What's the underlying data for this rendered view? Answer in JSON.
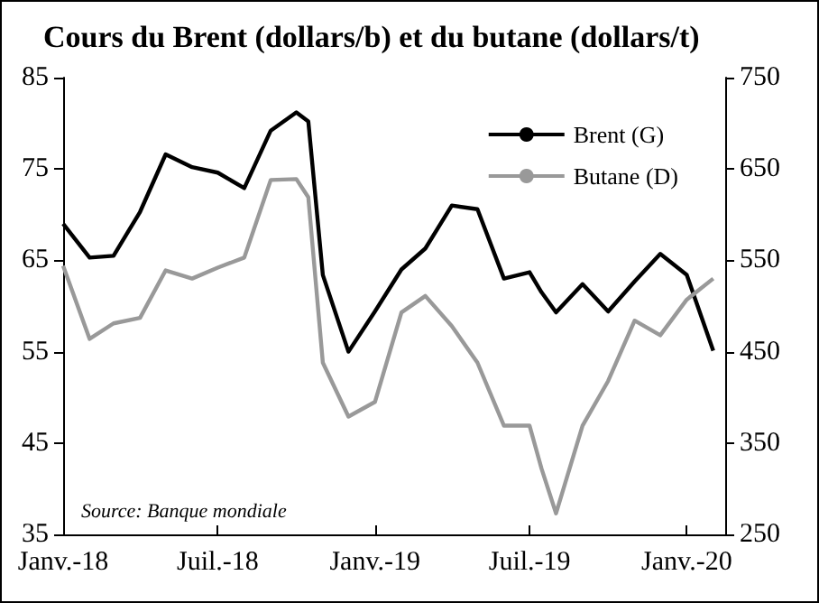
{
  "chart_data": {
    "type": "line",
    "title": "Cours du Brent (dollars/b) et du butane (dollars/t)",
    "x": [
      "2018-01",
      "2018-02",
      "2018-03",
      "2018-04",
      "2018-05",
      "2018-06",
      "2018-07",
      "2018-08",
      "2018-09",
      "2018-10",
      "2018-10-15",
      "2018-11",
      "2018-12",
      "2019-01",
      "2019-02",
      "2019-03",
      "2019-04",
      "2019-05",
      "2019-06",
      "2019-07",
      "2019-07-15",
      "2019-08",
      "2019-09",
      "2019-10",
      "2019-11",
      "2019-12",
      "2020-01",
      "2020-02"
    ],
    "series": [
      {
        "name": "Brent (G)",
        "color": "#000000",
        "values": [
          69,
          65.3,
          65.5,
          70.3,
          76.6,
          75.2,
          74.6,
          72.9,
          79.2,
          81.2,
          80.2,
          63.4,
          55,
          59.4,
          64,
          66.3,
          71,
          70.6,
          63,
          63.7,
          61.5,
          59.3,
          62.4,
          59.4,
          62.7,
          65.7,
          63.4,
          55.1
        ]
      },
      {
        "name": "Butane (D)",
        "color": "#999999",
        "axis": "y2",
        "values": [
          544,
          464,
          481,
          487,
          539,
          530,
          542,
          553,
          638,
          639,
          619,
          438,
          379,
          395,
          493,
          511,
          478,
          438,
          369,
          369,
          322,
          273,
          369,
          418,
          484,
          468,
          507,
          530
        ]
      }
    ],
    "xlim": [
      "2018-01",
      "2020-02-15"
    ],
    "xticks": [
      {
        "value": "2018-01",
        "label": "Janv.-18"
      },
      {
        "value": "2018-07",
        "label": "Juil.-18"
      },
      {
        "value": "2019-01",
        "label": "Janv.-19"
      },
      {
        "value": "2019-07",
        "label": "Juil.-19"
      },
      {
        "value": "2020-01",
        "label": "Janv.-20"
      }
    ],
    "ylim": [
      35,
      85
    ],
    "yticks": [
      35,
      45,
      55,
      65,
      75,
      85
    ],
    "y2lim": [
      250,
      750
    ],
    "y2ticks": [
      250,
      350,
      450,
      550,
      650,
      750
    ],
    "legend": "top right",
    "grid": false,
    "marker": "none",
    "line_style": "solid",
    "annotations": [
      "Source: Banque mondiale"
    ]
  }
}
